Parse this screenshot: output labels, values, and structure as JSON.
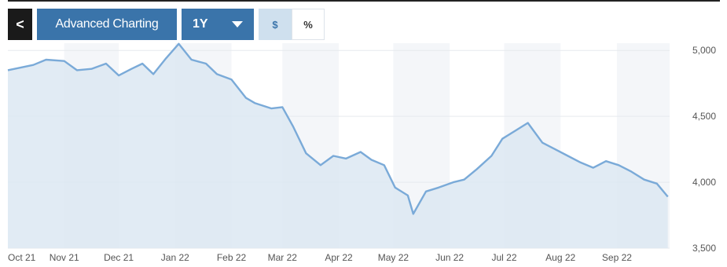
{
  "toolbar": {
    "back_label": "<",
    "advanced_label": "Advanced Charting",
    "range_label": "1Y",
    "currency_label": "$",
    "percent_label": "%"
  },
  "colors": {
    "line": "#7aaad8",
    "area": "#dce8f2",
    "button_primary": "#3a74aa",
    "band": "#f4f6f9"
  },
  "chart_data": {
    "type": "area",
    "title": "",
    "xlabel": "",
    "ylabel": "",
    "x_tick_labels": [
      "Oct 21",
      "Nov 21",
      "Dec 21",
      "Jan 22",
      "Feb 22",
      "Mar 22",
      "Apr 22",
      "May 22",
      "Jun 22",
      "Jul 22",
      "Aug 22",
      "Sep 22"
    ],
    "y_tick_labels": [
      "5,000",
      "4,500",
      "4,000",
      "3,500"
    ],
    "y_ticks": [
      5000,
      4500,
      4000,
      3500
    ],
    "ylim": [
      3500,
      5000
    ],
    "grid": true,
    "legend": "none",
    "x": [
      "2021-10-01",
      "2021-10-15",
      "2021-10-22",
      "2021-11-01",
      "2021-11-08",
      "2021-11-16",
      "2021-11-24",
      "2021-12-01",
      "2021-12-08",
      "2021-12-14",
      "2021-12-20",
      "2021-12-27",
      "2022-01-03",
      "2022-01-10",
      "2022-01-18",
      "2022-01-24",
      "2022-02-01",
      "2022-02-09",
      "2022-02-14",
      "2022-02-23",
      "2022-03-01",
      "2022-03-07",
      "2022-03-14",
      "2022-03-22",
      "2022-03-29",
      "2022-04-05",
      "2022-04-13",
      "2022-04-19",
      "2022-04-26",
      "2022-05-02",
      "2022-05-09",
      "2022-05-12",
      "2022-05-19",
      "2022-05-26",
      "2022-06-03",
      "2022-06-09",
      "2022-06-16",
      "2022-06-24",
      "2022-06-30",
      "2022-07-07",
      "2022-07-14",
      "2022-07-22",
      "2022-07-29",
      "2022-08-05",
      "2022-08-12",
      "2022-08-19",
      "2022-08-26",
      "2022-09-02",
      "2022-09-09",
      "2022-09-16",
      "2022-09-23",
      "2022-09-29"
    ],
    "values": [
      4850,
      4890,
      4930,
      4920,
      4850,
      4860,
      4900,
      4810,
      4860,
      4900,
      4820,
      4940,
      5050,
      4930,
      4900,
      4820,
      4780,
      4640,
      4600,
      4560,
      4570,
      4420,
      4220,
      4130,
      4200,
      4180,
      4230,
      4170,
      4130,
      3960,
      3900,
      3760,
      3930,
      3960,
      4000,
      4020,
      4100,
      4200,
      4330,
      4390,
      4450,
      4300,
      4250,
      4200,
      4150,
      4110,
      4160,
      4130,
      4080,
      4020,
      3990,
      3890
    ]
  }
}
